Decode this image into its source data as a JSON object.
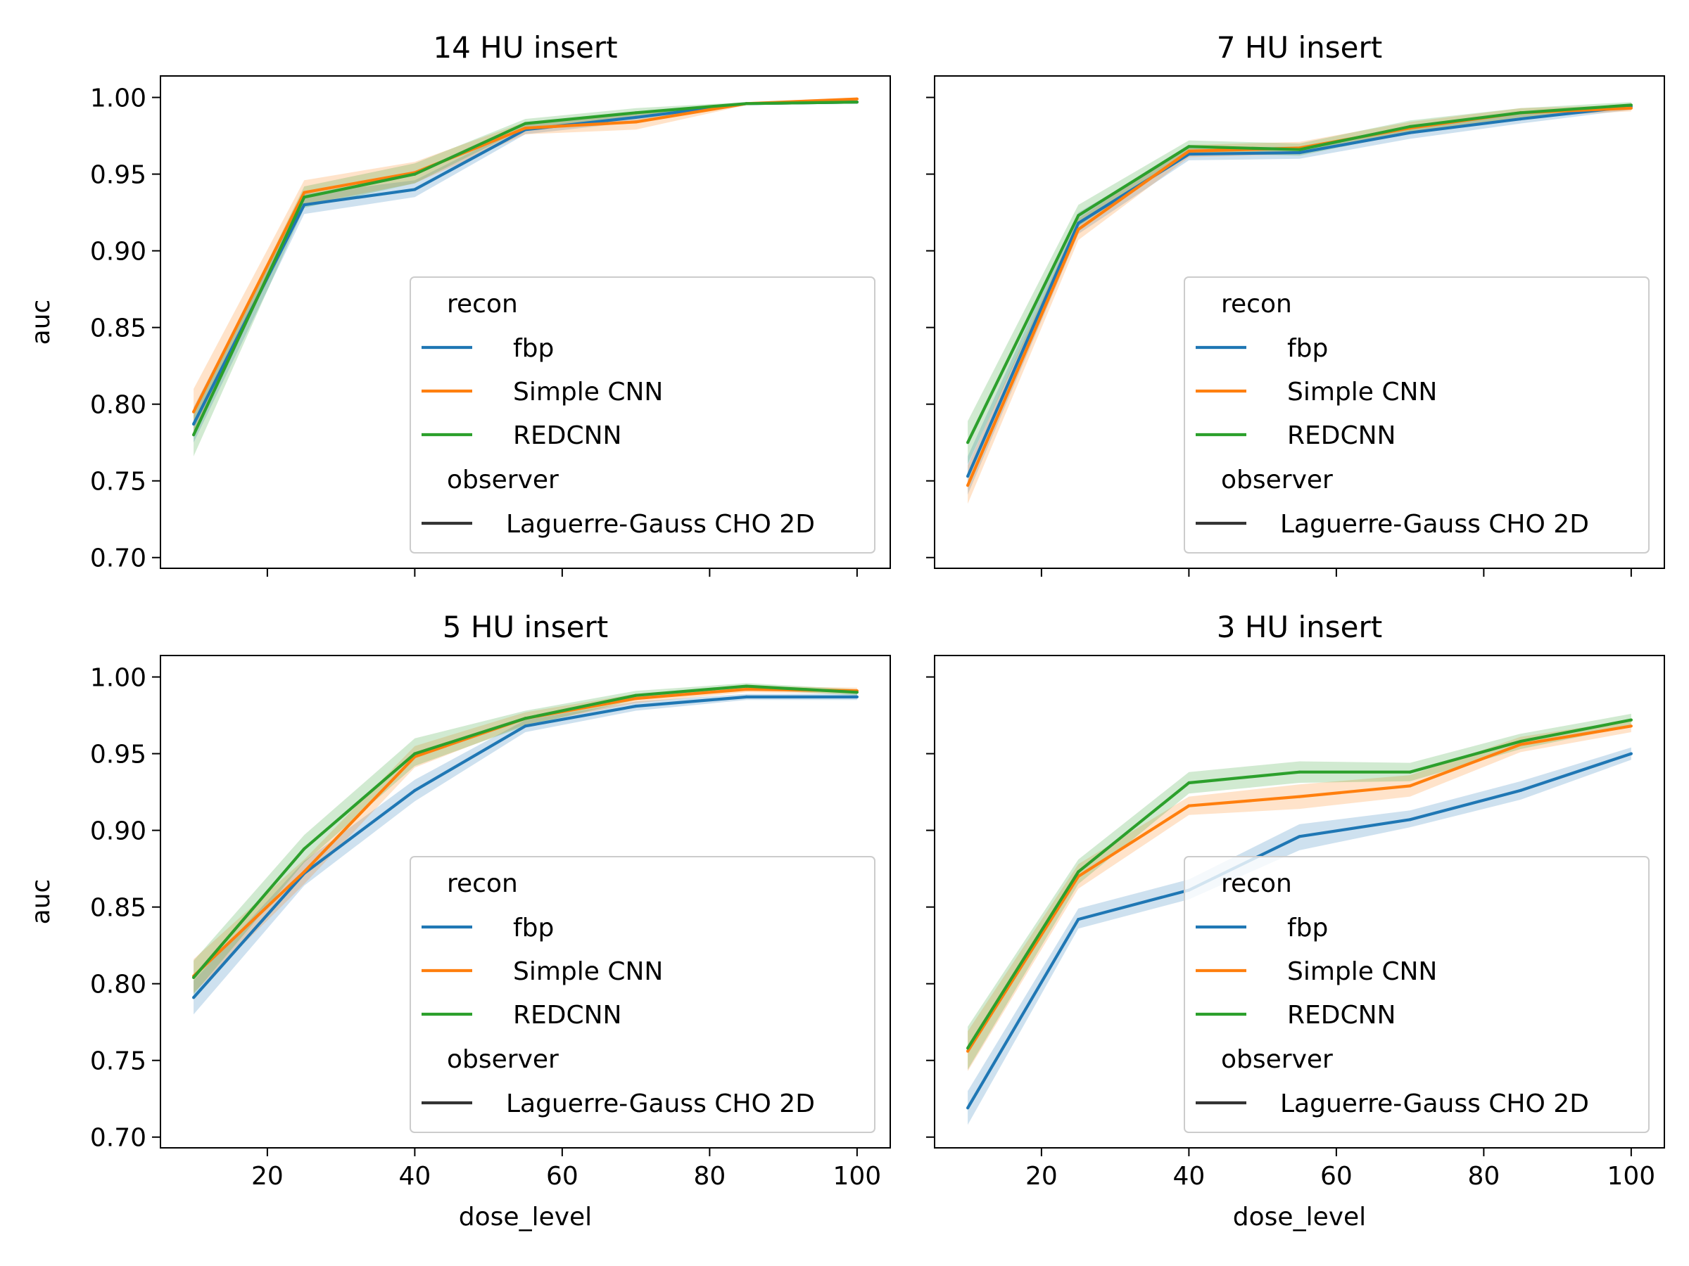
{
  "figure": {
    "xlabel": "dose_level",
    "ylabel": "auc",
    "xlim": [
      5.5,
      104.5
    ],
    "ylim": [
      0.693,
      1.014
    ],
    "xticks": [
      20,
      40,
      60,
      80,
      100
    ],
    "yticks": [
      "0.70",
      "0.75",
      "0.80",
      "0.85",
      "0.90",
      "0.95",
      "1.00"
    ],
    "legend": {
      "hue_title": "recon",
      "style_title": "observer",
      "style_entry": "Laguerre-Gauss CHO 2D",
      "placement": "lower right"
    },
    "colors": {
      "fbp": "#1f77b4",
      "Simple CNN": "#ff7f0e",
      "REDCNN": "#2ca02c",
      "style": "#333333"
    }
  },
  "chart_data": [
    {
      "type": "line",
      "title": "14 HU insert",
      "xlabel": "",
      "ylabel": "auc",
      "x": [
        10,
        25,
        40,
        55,
        70,
        85,
        100
      ],
      "series": [
        {
          "name": "fbp",
          "values": [
            0.787,
            0.93,
            0.94,
            0.979,
            0.987,
            0.996,
            0.997
          ],
          "ci_low": [
            0.775,
            0.924,
            0.935,
            0.976,
            0.984,
            0.995,
            0.996
          ],
          "ci_high": [
            0.798,
            0.937,
            0.946,
            0.982,
            0.99,
            0.997,
            0.998
          ]
        },
        {
          "name": "Simple CNN",
          "values": [
            0.795,
            0.938,
            0.951,
            0.98,
            0.984,
            0.996,
            0.999
          ],
          "ci_low": [
            0.781,
            0.93,
            0.944,
            0.976,
            0.979,
            0.995,
            0.998
          ],
          "ci_high": [
            0.81,
            0.946,
            0.958,
            0.984,
            0.989,
            0.997,
            1.0
          ]
        },
        {
          "name": "REDCNN",
          "values": [
            0.78,
            0.935,
            0.95,
            0.983,
            0.99,
            0.996,
            0.997
          ],
          "ci_low": [
            0.766,
            0.928,
            0.944,
            0.98,
            0.987,
            0.995,
            0.996
          ],
          "ci_high": [
            0.793,
            0.942,
            0.957,
            0.986,
            0.993,
            0.997,
            0.998
          ]
        }
      ]
    },
    {
      "type": "line",
      "title": "7 HU insert",
      "xlabel": "",
      "ylabel": "",
      "x": [
        10,
        25,
        40,
        55,
        70,
        85,
        100
      ],
      "series": [
        {
          "name": "fbp",
          "values": [
            0.753,
            0.918,
            0.963,
            0.964,
            0.977,
            0.986,
            0.994
          ],
          "ci_low": [
            0.741,
            0.911,
            0.959,
            0.96,
            0.973,
            0.983,
            0.992
          ],
          "ci_high": [
            0.766,
            0.925,
            0.967,
            0.968,
            0.981,
            0.989,
            0.996
          ]
        },
        {
          "name": "Simple CNN",
          "values": [
            0.747,
            0.914,
            0.965,
            0.967,
            0.98,
            0.99,
            0.993
          ],
          "ci_low": [
            0.735,
            0.907,
            0.961,
            0.963,
            0.976,
            0.987,
            0.991
          ],
          "ci_high": [
            0.76,
            0.921,
            0.969,
            0.971,
            0.984,
            0.993,
            0.995
          ]
        },
        {
          "name": "REDCNN",
          "values": [
            0.775,
            0.923,
            0.968,
            0.966,
            0.981,
            0.99,
            0.995
          ],
          "ci_low": [
            0.761,
            0.916,
            0.964,
            0.962,
            0.977,
            0.987,
            0.993
          ],
          "ci_high": [
            0.789,
            0.93,
            0.972,
            0.97,
            0.985,
            0.993,
            0.997
          ]
        }
      ]
    },
    {
      "type": "line",
      "title": "5 HU insert",
      "xlabel": "dose_level",
      "ylabel": "auc",
      "x": [
        10,
        25,
        40,
        55,
        70,
        85,
        100
      ],
      "series": [
        {
          "name": "fbp",
          "values": [
            0.791,
            0.872,
            0.926,
            0.968,
            0.981,
            0.987,
            0.987
          ],
          "ci_low": [
            0.78,
            0.864,
            0.919,
            0.964,
            0.978,
            0.985,
            0.985
          ],
          "ci_high": [
            0.802,
            0.88,
            0.933,
            0.972,
            0.984,
            0.989,
            0.989
          ]
        },
        {
          "name": "Simple CNN",
          "values": [
            0.805,
            0.873,
            0.948,
            0.973,
            0.986,
            0.992,
            0.991
          ],
          "ci_low": [
            0.794,
            0.865,
            0.941,
            0.969,
            0.983,
            0.99,
            0.989
          ],
          "ci_high": [
            0.816,
            0.881,
            0.955,
            0.977,
            0.989,
            0.994,
            0.993
          ]
        },
        {
          "name": "REDCNN",
          "values": [
            0.804,
            0.888,
            0.95,
            0.973,
            0.988,
            0.994,
            0.99
          ],
          "ci_low": [
            0.793,
            0.879,
            0.942,
            0.968,
            0.985,
            0.992,
            0.988
          ],
          "ci_high": [
            0.815,
            0.897,
            0.96,
            0.978,
            0.991,
            0.996,
            0.992
          ]
        }
      ]
    },
    {
      "type": "line",
      "title": "3 HU insert",
      "xlabel": "dose_level",
      "ylabel": "",
      "x": [
        10,
        25,
        40,
        55,
        70,
        85,
        100
      ],
      "series": [
        {
          "name": "fbp",
          "values": [
            0.719,
            0.842,
            0.861,
            0.896,
            0.907,
            0.926,
            0.95
          ],
          "ci_low": [
            0.708,
            0.836,
            0.855,
            0.887,
            0.902,
            0.92,
            0.946
          ],
          "ci_high": [
            0.73,
            0.849,
            0.868,
            0.904,
            0.913,
            0.932,
            0.954
          ]
        },
        {
          "name": "Simple CNN",
          "values": [
            0.756,
            0.87,
            0.916,
            0.922,
            0.929,
            0.956,
            0.968
          ],
          "ci_low": [
            0.743,
            0.862,
            0.91,
            0.914,
            0.922,
            0.951,
            0.964
          ],
          "ci_high": [
            0.769,
            0.878,
            0.922,
            0.93,
            0.936,
            0.961,
            0.972
          ]
        },
        {
          "name": "REDCNN",
          "values": [
            0.758,
            0.873,
            0.931,
            0.938,
            0.938,
            0.958,
            0.972
          ],
          "ci_low": [
            0.744,
            0.865,
            0.924,
            0.931,
            0.932,
            0.953,
            0.968
          ],
          "ci_high": [
            0.772,
            0.881,
            0.938,
            0.945,
            0.944,
            0.963,
            0.976
          ]
        }
      ]
    }
  ]
}
